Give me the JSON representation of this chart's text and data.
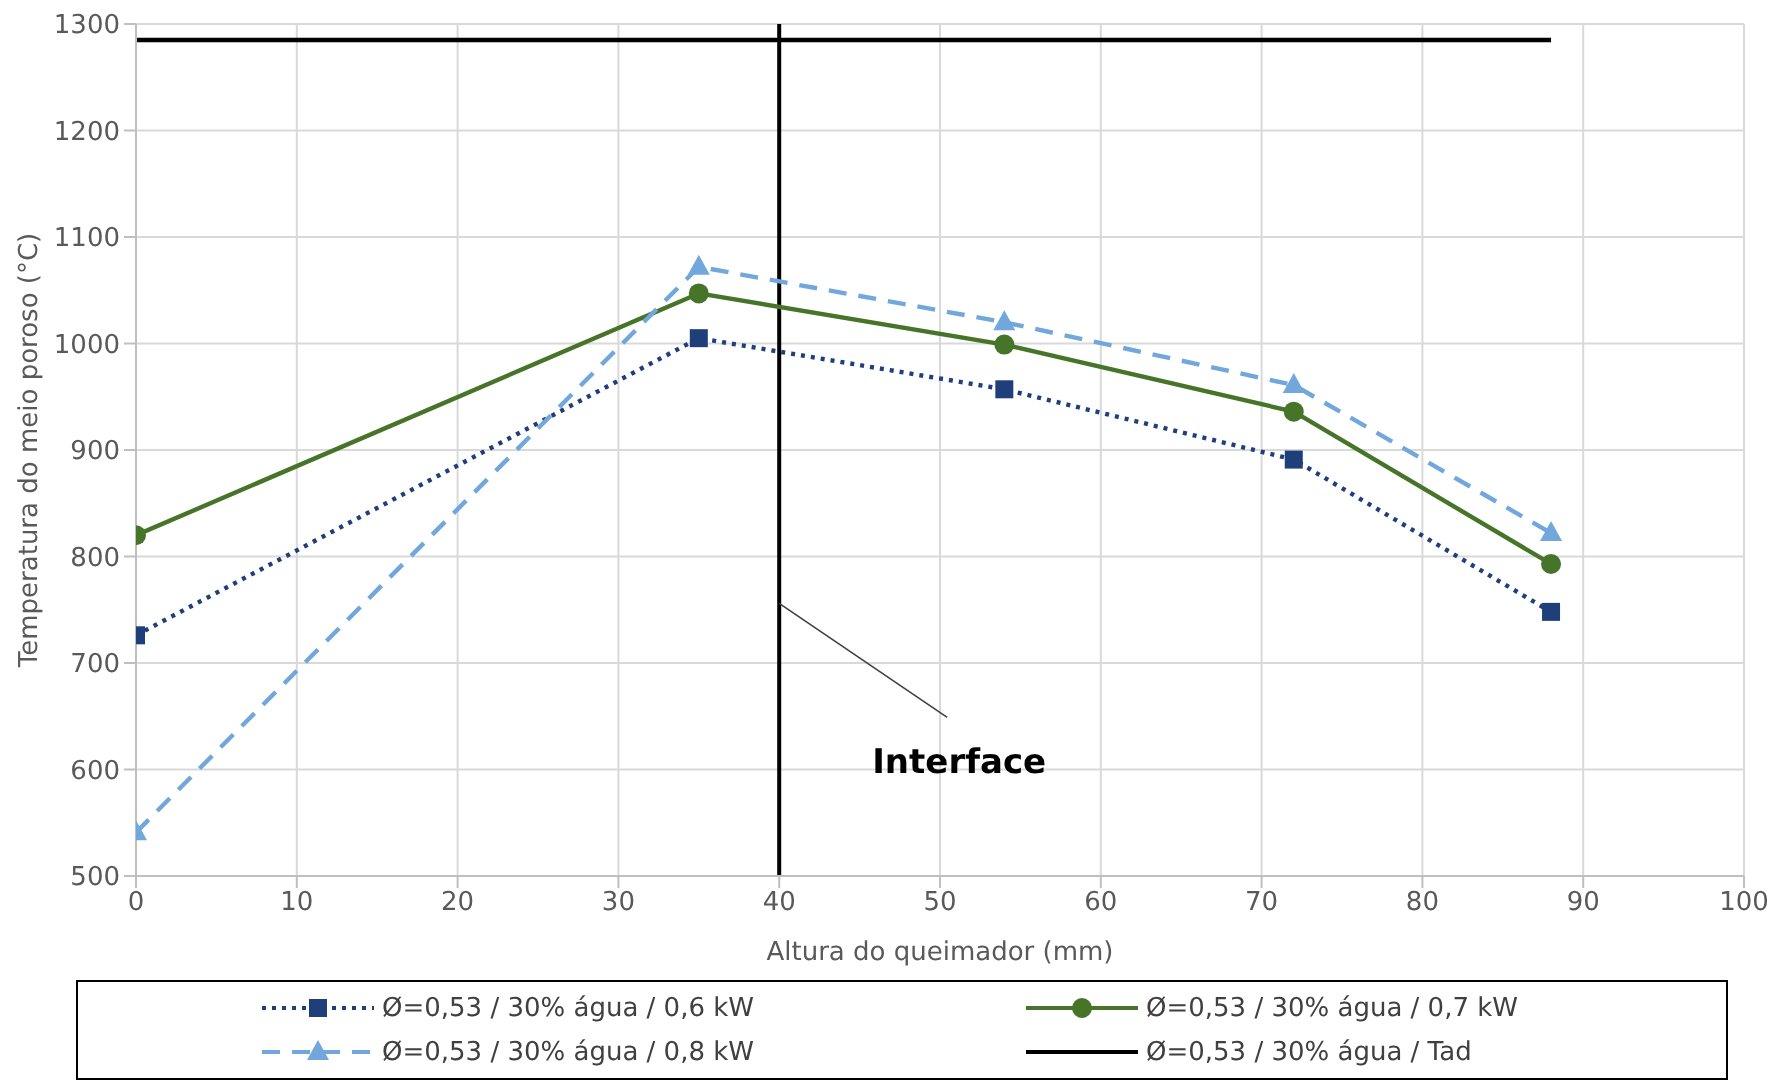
{
  "chart_data": {
    "type": "line",
    "xlabel": "Altura do queimador (mm)",
    "ylabel": "Temperatura do meio poroso (°C)",
    "xlim": [
      0,
      100
    ],
    "xticks": [
      0,
      10,
      20,
      30,
      40,
      50,
      60,
      70,
      80,
      90,
      100
    ],
    "ylim": [
      500,
      1300
    ],
    "yticks": [
      500,
      600,
      700,
      800,
      900,
      1000,
      1100,
      1200,
      1300
    ],
    "grid": true,
    "legend": "bottom",
    "series": [
      {
        "name": "Ø=0,53 / 30% água / 0,6 kW",
        "color": "#1f3f7a",
        "marker": "square",
        "line_style": "dotted",
        "x": [
          0,
          35,
          54,
          72,
          88
        ],
        "values": [
          726,
          1005,
          957,
          891,
          748
        ]
      },
      {
        "name": "Ø=0,53 / 30% água / 0,7 kW",
        "color": "#467529",
        "marker": "circle",
        "line_style": "solid",
        "x": [
          0,
          35,
          54,
          72,
          88
        ],
        "values": [
          820,
          1047,
          999,
          936,
          793
        ]
      },
      {
        "name": "Ø=0,53 / 30% água / 0,8 kW",
        "color": "#72a7dc",
        "marker": "triangle",
        "line_style": "dashed",
        "x": [
          0,
          35,
          54,
          72,
          88
        ],
        "values": [
          541,
          1072,
          1020,
          961,
          822
        ]
      },
      {
        "name": "Ø=0,53 / 30% água / Tad",
        "color": "#000000",
        "marker": "none",
        "line_style": "solid",
        "x": [
          0,
          88
        ],
        "values": [
          1285,
          1285
        ]
      }
    ],
    "ref_lines": [
      {
        "axis": "x",
        "value": 40,
        "color": "#000000"
      }
    ],
    "annotations": [
      {
        "text": "Interface",
        "x": 40,
        "y": 756
      }
    ]
  }
}
